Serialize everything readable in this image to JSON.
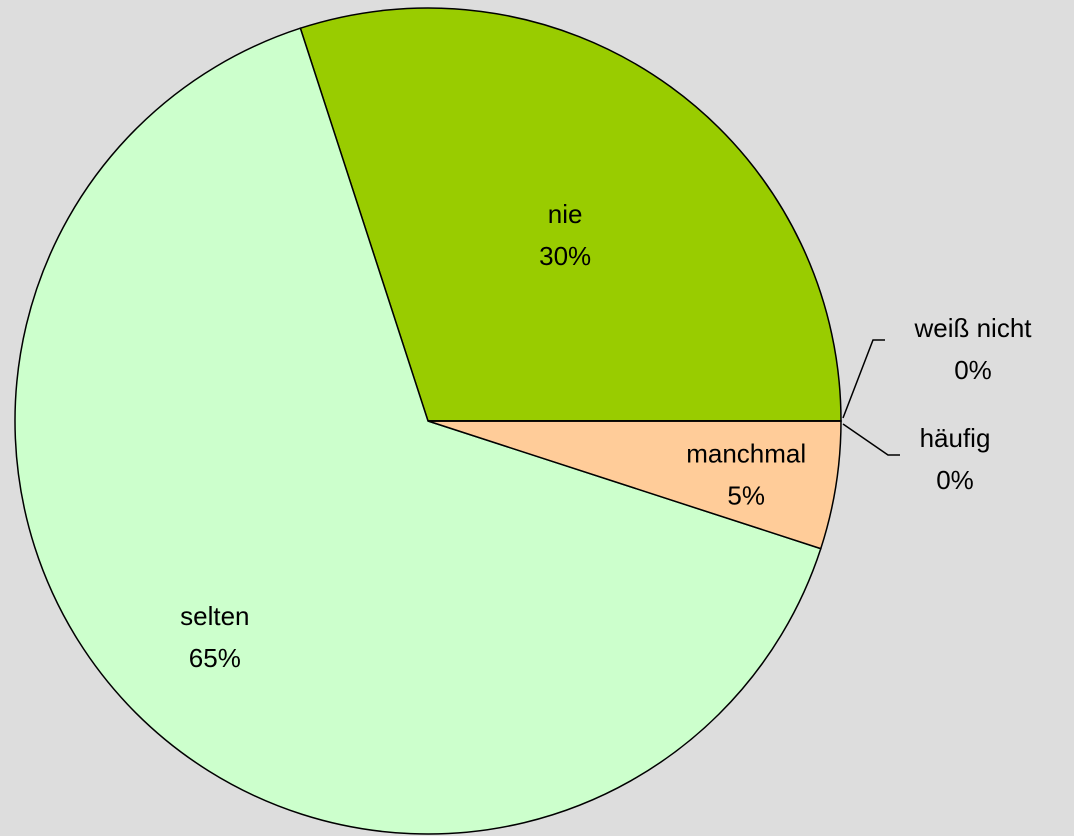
{
  "chart_data": {
    "type": "pie",
    "categories": [
      "nie",
      "selten",
      "manchmal",
      "häufig",
      "weiß nicht"
    ],
    "values": [
      30,
      65,
      5,
      0,
      0
    ],
    "value_labels": [
      "30%",
      "65%",
      "5%",
      "0%",
      "0%"
    ],
    "colors": [
      "#99cc00",
      "#ccffcc",
      "#ffcc99",
      null,
      null
    ]
  }
}
